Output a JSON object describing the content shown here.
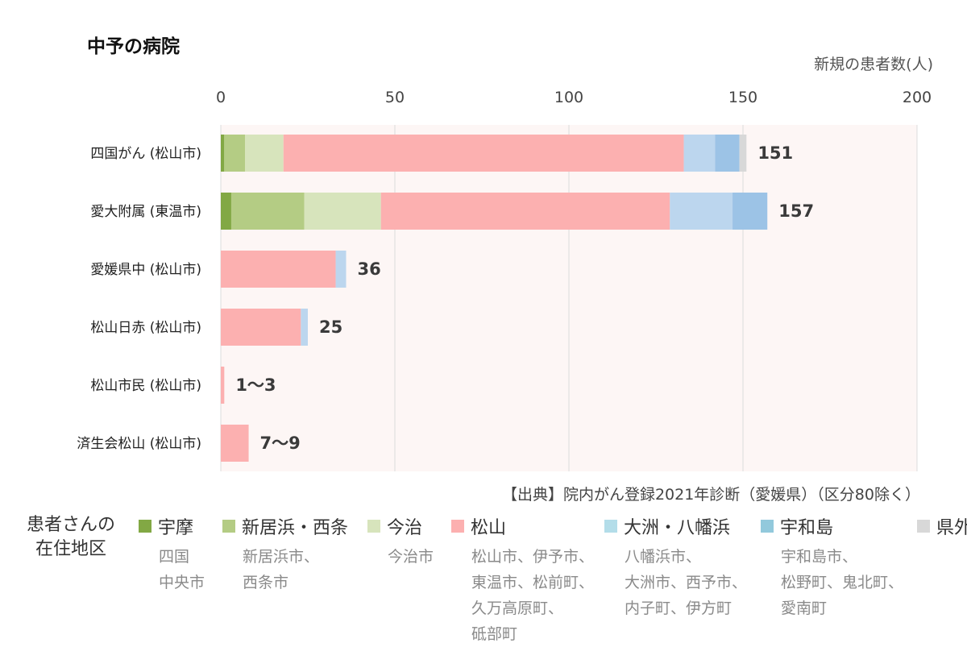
{
  "chart_data": {
    "type": "bar",
    "orientation": "horizontal",
    "stacked": true,
    "title": "中予の病院",
    "unit_label": "新規の患者数(人)",
    "source": "【出典】院内がん登録2021年診断（愛媛県）（区分80除く）",
    "xlim": [
      0,
      200
    ],
    "xticks": [
      0,
      50,
      100,
      150,
      200
    ],
    "grid": true,
    "categories": [
      "四国がん (松山市)",
      "愛大附属 (東温市)",
      "愛媛県中 (松山市)",
      "松山日赤 (松山市)",
      "松山市民 (松山市)",
      "済生会松山 (松山市)"
    ],
    "totals": [
      "151",
      "157",
      "36",
      "25",
      "1〜3",
      "7〜9"
    ],
    "series": [
      {
        "name": "宇摩",
        "color": "#82a844",
        "values": [
          1,
          3,
          0,
          0,
          0,
          0
        ]
      },
      {
        "name": "新居浜・西条",
        "color": "#b4cc84",
        "values": [
          6,
          21,
          0,
          0,
          0,
          0
        ]
      },
      {
        "name": "今治",
        "color": "#d7e4bc",
        "values": [
          11,
          22,
          0,
          0,
          0,
          0
        ]
      },
      {
        "name": "松山",
        "color": "#fcb0b0",
        "values": [
          115,
          83,
          33,
          23,
          1,
          8
        ]
      },
      {
        "name": "大洲・八幡浜",
        "color": "#bcd6ee",
        "values": [
          9,
          18,
          3,
          2,
          0,
          0
        ]
      },
      {
        "name": "宇和島",
        "color": "#9cc3e6",
        "values": [
          7,
          10,
          0,
          0,
          0,
          0
        ]
      },
      {
        "name": "県外",
        "color": "#d8d8d8",
        "values": [
          2,
          0,
          0,
          0,
          0,
          0
        ]
      }
    ]
  },
  "legend": {
    "heading_lines": [
      "患者さんの",
      "在住地区"
    ],
    "items": [
      {
        "label": "宇摩",
        "color": "#82a844",
        "places": [
          "四国",
          "中央市"
        ]
      },
      {
        "label": "新居浜・西条",
        "color": "#b4cc84",
        "places": [
          "新居浜市、",
          "西条市"
        ]
      },
      {
        "label": "今治",
        "color": "#d7e4bc",
        "places": [
          "今治市"
        ]
      },
      {
        "label": "松山",
        "color": "#fcb0b0",
        "places": [
          "松山市、伊予市、",
          "東温市、松前町、",
          "久万高原町、",
          "砥部町"
        ]
      },
      {
        "label": "大洲・八幡浜",
        "color": "#b3dde9",
        "places": [
          "八幡浜市、",
          "大洲市、西予市、",
          "内子町、伊方町"
        ]
      },
      {
        "label": "宇和島",
        "color": "#92c9dc",
        "places": [
          "宇和島市、",
          "松野町、鬼北町、",
          "愛南町"
        ]
      },
      {
        "label": "県外",
        "color": "#d8d8d8",
        "places": []
      }
    ]
  }
}
